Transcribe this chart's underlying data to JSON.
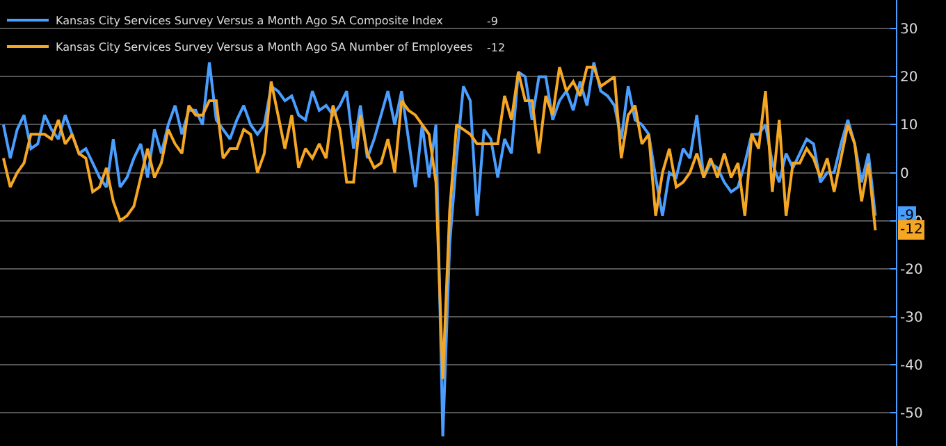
{
  "chart_data": {
    "type": "line",
    "categories": [
      null,
      null,
      null,
      null,
      null,
      null,
      null,
      null,
      null,
      null,
      null,
      null,
      null,
      null,
      null,
      null,
      null,
      null,
      null,
      null,
      null,
      null,
      null,
      null,
      null,
      null,
      null,
      null,
      null,
      null,
      null,
      null,
      null,
      null,
      null,
      null,
      null,
      null,
      null,
      null,
      null,
      null,
      null,
      null,
      null,
      null,
      null,
      null,
      null,
      null,
      null,
      null,
      null,
      null,
      null,
      null,
      null,
      null,
      null,
      null,
      null,
      null,
      null,
      null,
      null,
      null,
      null,
      null,
      null,
      null,
      null,
      null,
      null,
      null,
      null,
      null,
      null,
      null,
      null,
      null,
      null,
      null,
      null,
      null,
      null,
      null,
      null,
      null,
      null,
      null,
      null,
      null,
      null,
      null,
      null,
      null,
      null,
      null,
      null,
      null,
      null,
      null,
      null,
      null,
      null,
      null,
      null,
      null,
      null,
      null,
      null,
      null,
      null,
      null,
      null,
      null,
      null,
      null,
      null,
      null,
      null,
      null,
      null,
      null,
      null,
      null,
      null,
      null
    ],
    "series": [
      {
        "name": "Kansas City Services Survey Versus a Month Ago SA Composite Index",
        "color": "#4a9eff",
        "values": [
          10,
          3,
          9,
          12,
          5,
          6,
          12,
          9,
          7,
          12,
          8,
          4,
          5,
          2,
          -1,
          -3,
          7,
          -3,
          -1,
          3,
          6,
          -1,
          9,
          4,
          10,
          14,
          8,
          13,
          13,
          10,
          23,
          11,
          9,
          7,
          11,
          14,
          10,
          8,
          10,
          18,
          17,
          15,
          16,
          12,
          11,
          17,
          13,
          14,
          12,
          14,
          17,
          5,
          14,
          3,
          7,
          12,
          17,
          10,
          17,
          7,
          -3,
          10,
          -1,
          10,
          -55,
          -15,
          3,
          18,
          15,
          -9,
          9,
          7,
          -1,
          7,
          4,
          21,
          20,
          11,
          20,
          20,
          11,
          15,
          17,
          13,
          19,
          14,
          23,
          17,
          16,
          14,
          7,
          18,
          11,
          10,
          8,
          -1,
          -9,
          0,
          -1,
          5,
          3,
          12,
          -1,
          2,
          1,
          -2,
          -4,
          -3,
          2,
          8,
          8,
          10,
          2,
          -2,
          4,
          1,
          4,
          7,
          6,
          -2,
          0,
          0,
          6,
          11,
          6,
          -2,
          4,
          -9
        ],
        "value_labels": [
          null,
          null,
          null,
          null,
          null,
          null,
          null,
          null,
          null,
          null,
          null,
          null,
          null,
          null,
          null,
          null,
          null,
          null,
          null,
          null,
          null,
          null,
          null,
          null,
          null,
          null,
          null,
          null,
          null,
          null,
          null,
          null,
          null,
          null,
          null,
          null,
          null,
          null,
          null,
          null,
          null,
          null,
          null,
          null,
          null,
          null,
          null,
          null,
          null,
          null,
          null,
          null,
          null,
          null,
          null,
          null,
          null,
          null,
          null,
          null,
          null,
          null,
          null,
          null,
          null,
          null,
          null,
          null,
          null,
          null,
          null,
          null,
          null,
          null,
          null,
          null,
          null,
          null,
          null,
          null,
          null,
          null,
          null,
          null,
          null,
          null,
          null,
          null,
          null,
          null,
          null,
          null,
          null,
          null,
          null,
          null,
          null,
          null,
          null,
          null,
          null,
          null,
          null,
          null,
          null,
          null,
          null,
          null,
          null,
          null,
          null,
          null,
          null,
          null,
          null,
          null,
          null,
          null,
          null,
          null,
          null,
          null,
          null,
          null,
          null,
          null,
          null,
          "-9"
        ]
      },
      {
        "name": "Kansas City Services Survey Versus a Month Ago SA Number of Employees",
        "color": "#f5a623",
        "values": [
          3,
          -3,
          0,
          2,
          8,
          8,
          8,
          7,
          11,
          6,
          8,
          4,
          3,
          -4,
          -3,
          1,
          -6,
          -10,
          -9,
          -7,
          -1,
          5,
          -1,
          2,
          9,
          6,
          4,
          14,
          12,
          12,
          15,
          15,
          3,
          5,
          5,
          9,
          8,
          0,
          4,
          19,
          12,
          5,
          12,
          1,
          5,
          3,
          6,
          3,
          14,
          9,
          -2,
          -2,
          12,
          4,
          1,
          2,
          7,
          0,
          15,
          13,
          12,
          10,
          8,
          -2,
          -43,
          -8,
          10,
          9,
          8,
          6,
          6,
          6,
          6,
          16,
          11,
          21,
          15,
          15,
          4,
          16,
          12,
          22,
          17,
          19,
          16,
          22,
          22,
          18,
          19,
          20,
          3,
          12,
          14,
          6,
          8,
          -9,
          0,
          5,
          -3,
          -2,
          0,
          4,
          -1,
          3,
          -1,
          4,
          -1,
          2,
          -9,
          8,
          5,
          17,
          -4,
          11,
          -9,
          2,
          2,
          5,
          3,
          -1,
          3,
          -4,
          3,
          10,
          6,
          -6,
          2,
          -12
        ],
        "value_labels": [
          null,
          null,
          null,
          null,
          null,
          null,
          null,
          null,
          null,
          null,
          null,
          null,
          null,
          null,
          null,
          null,
          null,
          null,
          null,
          null,
          null,
          null,
          null,
          null,
          null,
          null,
          null,
          null,
          null,
          null,
          null,
          null,
          null,
          null,
          null,
          null,
          null,
          null,
          null,
          null,
          null,
          null,
          null,
          null,
          null,
          null,
          null,
          null,
          null,
          null,
          null,
          null,
          null,
          null,
          null,
          null,
          null,
          null,
          null,
          null,
          null,
          null,
          null,
          null,
          null,
          null,
          null,
          null,
          null,
          null,
          null,
          null,
          null,
          null,
          null,
          null,
          null,
          null,
          null,
          null,
          null,
          null,
          null,
          null,
          null,
          null,
          null,
          null,
          null,
          null,
          null,
          null,
          null,
          null,
          null,
          null,
          null,
          null,
          null,
          null,
          null,
          null,
          null,
          null,
          null,
          null,
          null,
          null,
          null,
          null,
          null,
          null,
          null,
          null,
          null,
          null,
          null,
          null,
          null,
          null,
          null,
          null,
          null,
          null,
          null,
          null,
          null,
          "-12"
        ]
      }
    ],
    "ylim": [
      -57,
      36
    ],
    "yticks": [
      -50,
      -40,
      -30,
      -20,
      -10,
      0,
      10,
      20,
      30
    ],
    "tick_labels": "y",
    "grid": "y",
    "legend": "top left",
    "marker": "none",
    "line_style": "solid"
  }
}
